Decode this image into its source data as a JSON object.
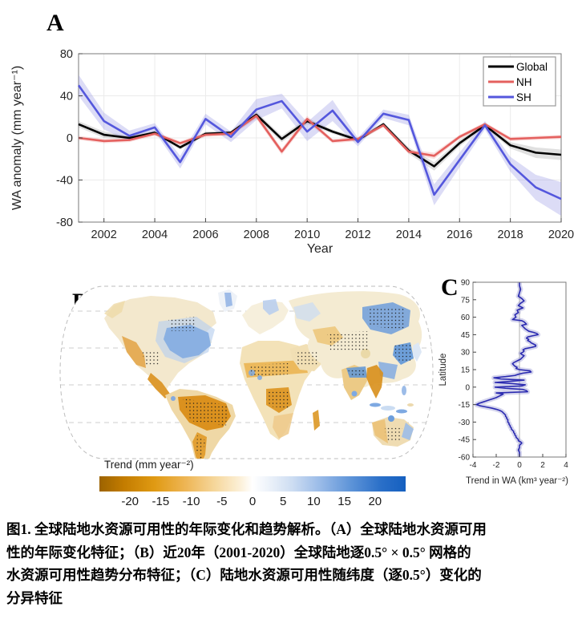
{
  "figure": {
    "panel_a": {
      "label": "A",
      "ylabel": "WA anomaly (mm year⁻¹)",
      "xlabel": "Year",
      "xlim": [
        2001,
        2020
      ],
      "ylim": [
        -80,
        80
      ],
      "x_ticks": [
        2002,
        2004,
        2006,
        2008,
        2010,
        2012,
        2014,
        2016,
        2018,
        2020
      ],
      "y_ticks": [
        80,
        40,
        0,
        -40,
        -80
      ],
      "legend": [
        {
          "label": "Global",
          "color": "#000000"
        },
        {
          "label": "NH",
          "color": "#e4605e"
        },
        {
          "label": "SH",
          "color": "#5457dd"
        }
      ],
      "chart_data": {
        "type": "line",
        "x": [
          2001,
          2002,
          2003,
          2004,
          2005,
          2006,
          2007,
          2008,
          2009,
          2010,
          2011,
          2012,
          2013,
          2014,
          2015,
          2016,
          2017,
          2018,
          2019,
          2020
        ],
        "series": [
          {
            "name": "Global",
            "color": "#000000",
            "band_color": "#999999",
            "values": [
              13,
              3,
              0,
              5,
              -9,
              4,
              5,
              22,
              -1,
              16,
              6,
              -2,
              13,
              -12,
              -27,
              -5,
              12,
              -7,
              -14,
              -16
            ],
            "band": [
              3,
              3,
              2,
              2,
              2,
              2,
              2,
              3,
              3,
              3,
              2,
              2,
              2,
              3,
              4,
              3,
              2,
              3,
              5,
              5
            ]
          },
          {
            "name": "NH",
            "color": "#e4605e",
            "band_color": "#ee9999",
            "values": [
              0,
              -3,
              -2,
              4,
              -5,
              3,
              4,
              21,
              -13,
              18,
              -3,
              -1,
              12,
              -13,
              -17,
              1,
              13,
              -1,
              0,
              1
            ],
            "band": [
              2,
              2,
              2,
              2,
              2,
              2,
              2,
              3,
              3,
              3,
              2,
              2,
              2,
              2,
              3,
              2,
              2,
              2,
              2,
              2
            ]
          },
          {
            "name": "SH",
            "color": "#5457dd",
            "band_color": "#8a8ae0",
            "values": [
              50,
              16,
              2,
              10,
              -23,
              18,
              1,
              27,
              35,
              6,
              26,
              -4,
              23,
              17,
              -54,
              -21,
              12,
              -25,
              -47,
              -58
            ],
            "band": [
              10,
              8,
              5,
              4,
              6,
              5,
              5,
              10,
              7,
              9,
              10,
              4,
              4,
              5,
              10,
              7,
              4,
              7,
              12,
              16
            ]
          }
        ],
        "title": "",
        "grid": true,
        "legend_position": "upper right"
      }
    },
    "panel_b": {
      "label": "B",
      "map_style": "robinson-projection, dashed graticule, stippling marks significance",
      "colorbar": {
        "title": "Trend (mm year⁻²)",
        "ticks": [
          -20,
          -15,
          -10,
          -5,
          0,
          5,
          10,
          15,
          20
        ],
        "range": [
          -25,
          25
        ],
        "negative_color": "#9c6300",
        "positive_color": "#1560c0"
      }
    },
    "panel_c": {
      "label": "C",
      "ylabel": "Latitude",
      "xlabel": "Trend in WA (km³ year⁻²)",
      "xlim": [
        -4,
        4
      ],
      "ylim": [
        -60,
        90
      ],
      "x_ticks": [
        -4,
        -2,
        0,
        2,
        4
      ],
      "y_ticks": [
        90,
        75,
        60,
        45,
        30,
        15,
        0,
        -15,
        -30,
        -45,
        -60
      ],
      "line_color": "#2a2ab0",
      "band_color": "#8888cc",
      "chart_data": {
        "type": "line",
        "orientation": "vertical",
        "latitude": [
          90,
          87,
          84,
          81,
          78,
          76,
          74,
          72,
          70,
          68,
          66,
          64,
          62,
          60,
          58,
          57,
          56,
          54,
          53,
          52,
          50,
          48,
          47,
          46,
          45,
          44,
          43,
          42,
          41,
          40,
          39,
          38,
          37,
          36,
          35,
          34,
          33,
          32,
          31,
          30,
          29,
          28,
          27,
          26,
          25,
          24,
          23,
          22,
          21,
          20,
          19,
          18,
          17,
          16,
          15,
          14,
          13,
          12,
          11,
          10,
          9,
          8,
          7,
          6,
          5,
          4,
          3,
          2,
          1,
          0,
          -1,
          -2,
          -3,
          -4,
          -5,
          -6,
          -7,
          -8,
          -9,
          -10,
          -11,
          -12,
          -13,
          -14,
          -15,
          -16,
          -17,
          -18,
          -19,
          -20,
          -21,
          -22,
          -23,
          -24,
          -25,
          -26,
          -27,
          -28,
          -29,
          -30,
          -31,
          -32,
          -33,
          -34,
          -35,
          -36,
          -37,
          -38,
          -39,
          -40,
          -41,
          -42,
          -43,
          -44,
          -45,
          -46,
          -47,
          -48,
          -49,
          -50,
          -52,
          -54,
          -56,
          -58,
          -60
        ],
        "values": [
          0.0,
          0.0,
          0.1,
          0.0,
          -0.1,
          0.2,
          0.4,
          0.1,
          -0.1,
          0.3,
          -0.2,
          -0.1,
          -0.4,
          -0.3,
          -0.6,
          0.2,
          0.4,
          0.6,
          0.2,
          0.3,
          0.5,
          0.8,
          1.2,
          1.5,
          1.6,
          1.1,
          0.7,
          0.6,
          0.8,
          0.7,
          0.9,
          1.0,
          1.2,
          1.4,
          1.4,
          1.0,
          0.5,
          0.3,
          0.4,
          0.3,
          0.1,
          0.2,
          0.4,
          0.3,
          0.2,
          0.1,
          -0.1,
          -0.3,
          -0.5,
          -0.6,
          -0.5,
          -0.4,
          -0.2,
          -0.3,
          0.0,
          0.9,
          1.0,
          0.3,
          -0.1,
          -0.4,
          -1.2,
          -2.2,
          -1.6,
          0.4,
          -0.8,
          -2.1,
          -0.6,
          0.5,
          0.2,
          -2.1,
          -1.2,
          0.3,
          0.6,
          0.7,
          -2.0,
          -1.4,
          -1.6,
          -1.8,
          -2.0,
          -2.3,
          -2.6,
          -2.9,
          -3.2,
          -3.5,
          -3.7,
          -3.4,
          -2.9,
          -2.4,
          -2.0,
          -1.7,
          -1.5,
          -1.4,
          -1.3,
          -1.2,
          -1.2,
          -1.1,
          -1.1,
          -1.0,
          -1.0,
          -1.0,
          -0.9,
          -0.9,
          -0.8,
          -0.8,
          -0.7,
          -0.7,
          -0.6,
          -0.5,
          -0.5,
          -0.4,
          -0.4,
          -0.3,
          -0.3,
          -0.2,
          -0.1,
          -0.1,
          0.1,
          0.2,
          0.1,
          0.0,
          0.0,
          -0.1,
          0.0,
          0.0,
          0.0
        ]
      }
    },
    "caption_lines": [
      "图1. 全球陆地水资源可用性的年际变化和趋势解析。（A）全球陆地水资源可用",
      "性的年际变化特征；（B）近20年（2001-2020）全球陆地逐0.5° × 0.5° 网格的",
      "水资源可用性趋势分布特征；（C）陆地水资源可用性随纬度（逐0.5°）变化的",
      "分异特征"
    ]
  }
}
